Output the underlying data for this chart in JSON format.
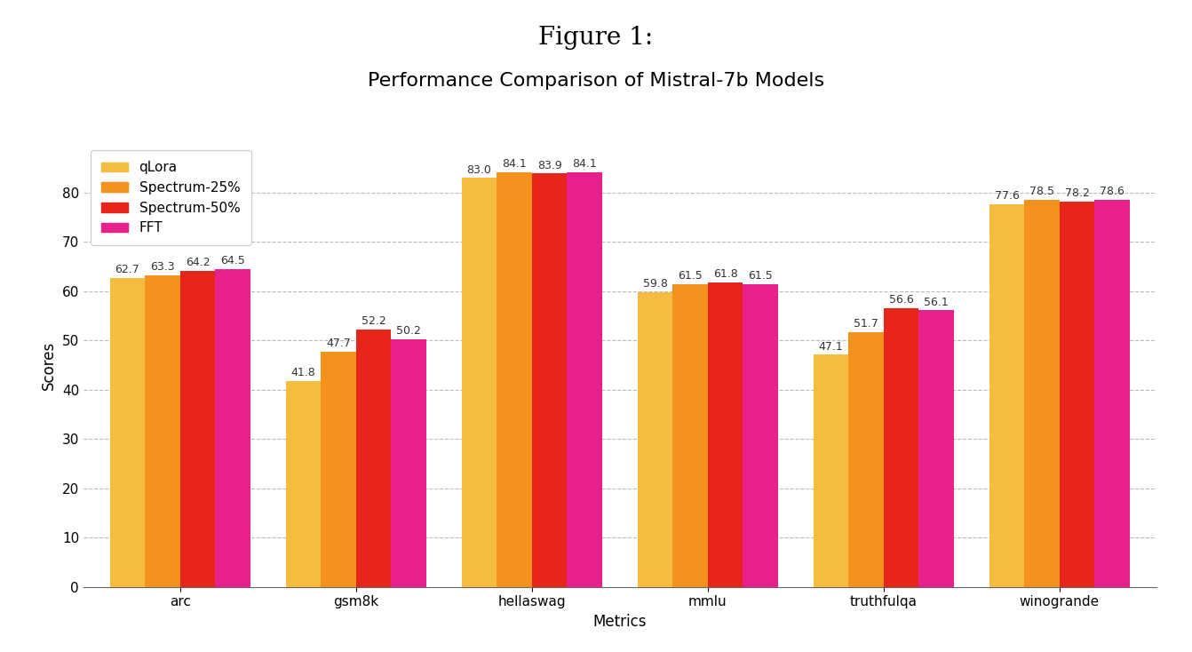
{
  "title_line1": "Figure 1:",
  "title_line2": "Performance Comparison of Mistral-7b Models",
  "xlabel": "Metrics",
  "ylabel": "Scores",
  "categories": [
    "arc",
    "gsm8k",
    "hellaswag",
    "mmlu",
    "truthfulqa",
    "winogrande"
  ],
  "series": {
    "qLora": [
      62.7,
      41.8,
      83.0,
      59.8,
      47.1,
      77.6
    ],
    "Spectrum-25%": [
      63.3,
      47.7,
      84.1,
      61.5,
      51.7,
      78.5
    ],
    "Spectrum-50%": [
      64.2,
      52.2,
      83.9,
      61.8,
      56.6,
      78.2
    ],
    "FFT": [
      64.5,
      50.2,
      84.1,
      61.5,
      56.1,
      78.6
    ]
  },
  "colors": {
    "qLora": "#F5BC42",
    "Spectrum-25%": "#F5921E",
    "Spectrum-50%": "#E8251A",
    "FFT": "#E8208C"
  },
  "ylim": [
    0,
    90
  ],
  "yticks": [
    0,
    10,
    20,
    30,
    40,
    50,
    60,
    70,
    80
  ],
  "bar_width": 0.2,
  "background_color": "#FFFFFF",
  "grid_color": "#BBBBBB",
  "label_fontsize": 9,
  "title_fontsize_line1": 20,
  "title_fontsize_line2": 16,
  "axis_label_fontsize": 12,
  "tick_fontsize": 11,
  "legend_fontsize": 11
}
